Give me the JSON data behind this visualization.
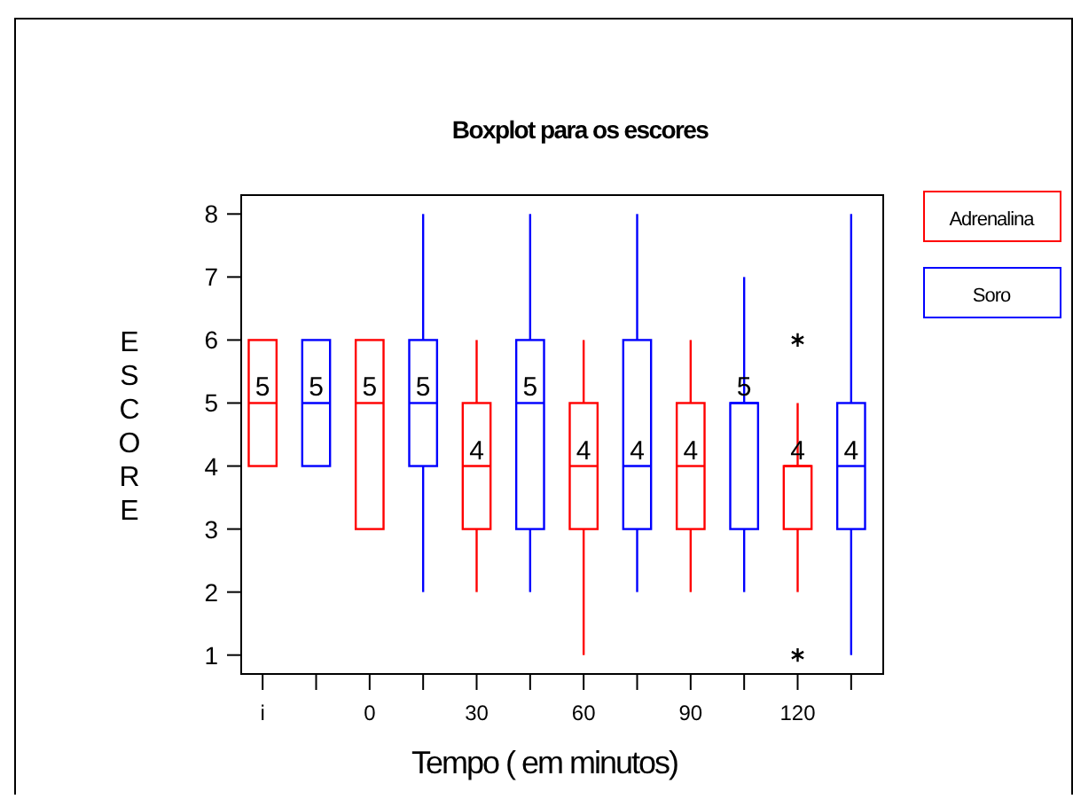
{
  "chart_data": {
    "type": "box",
    "title": "Boxplot para os escores",
    "xlabel": "Tempo ( em minutos)",
    "ylabel": "ESCORE",
    "categories": [
      "i",
      null,
      "0",
      null,
      "30",
      null,
      "60",
      null,
      "90",
      null,
      "120",
      null
    ],
    "ylim": [
      0.7,
      8.3
    ],
    "yticks": [
      1,
      2,
      3,
      4,
      5,
      6,
      7,
      8
    ],
    "grid": false,
    "legend": "top right",
    "series": [
      {
        "name": "Adrenalina",
        "color": "#ff0000",
        "boxes": [
          {
            "low": 4,
            "q1": 4,
            "median": 5,
            "q3": 6,
            "high": 6
          },
          null,
          {
            "low": 3,
            "q1": 3,
            "median": 5,
            "q3": 6,
            "high": 6
          },
          null,
          {
            "low": 2,
            "q1": 3,
            "median": 4,
            "q3": 5,
            "high": 6
          },
          null,
          {
            "low": 1,
            "q1": 3,
            "median": 4,
            "q3": 5,
            "high": 6
          },
          null,
          {
            "low": 2,
            "q1": 3,
            "median": 4,
            "q3": 5,
            "high": 6
          },
          null,
          {
            "low": 2,
            "q1": 3,
            "median": 4,
            "q3": 4,
            "high": 5,
            "outliers": [
              6,
              1
            ]
          },
          null
        ],
        "value_labels": [
          "5",
          null,
          "5",
          null,
          "4",
          null,
          "4",
          null,
          "4",
          null,
          "4",
          null
        ]
      },
      {
        "name": "Soro",
        "color": "#0000ff",
        "boxes": [
          null,
          {
            "low": 4,
            "q1": 4,
            "median": 5,
            "q3": 6,
            "high": 6
          },
          null,
          {
            "low": 2,
            "q1": 4,
            "median": 5,
            "q3": 6,
            "high": 8
          },
          null,
          {
            "low": 2,
            "q1": 3,
            "median": 5,
            "q3": 6,
            "high": 8
          },
          null,
          {
            "low": 2,
            "q1": 3,
            "median": 4,
            "q3": 6,
            "high": 8
          },
          null,
          {
            "low": 2,
            "q1": 3,
            "median": 5,
            "q3": 5,
            "high": 7
          },
          null,
          {
            "low": 1,
            "q1": 3,
            "median": 4,
            "q3": 5,
            "high": 8
          }
        ],
        "value_labels": [
          null,
          "5",
          null,
          "5",
          null,
          "5",
          null,
          "4",
          null,
          "5",
          null,
          "4"
        ]
      }
    ]
  }
}
